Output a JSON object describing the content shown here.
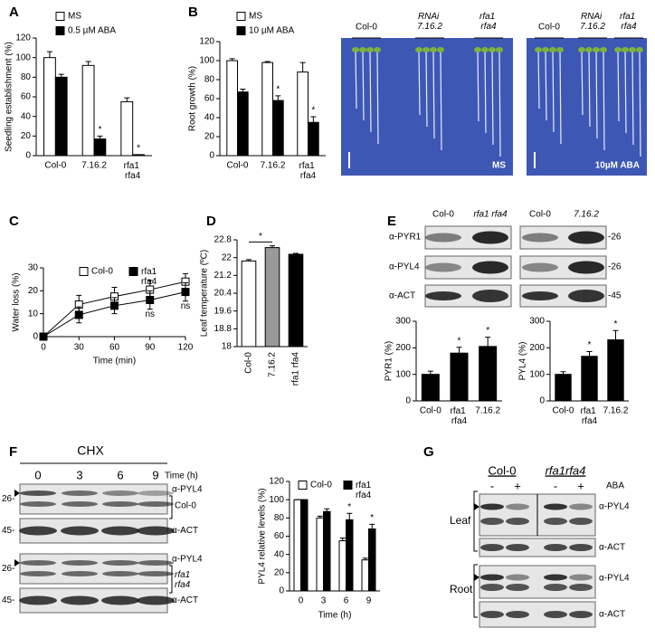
{
  "panel_labels": [
    "A",
    "B",
    "C",
    "D",
    "E",
    "F",
    "G"
  ],
  "chart_data": [
    {
      "type": "bar",
      "y_label": "Seedling establishment (%)",
      "categories": [
        "Col-0",
        "7.16.2",
        "rfa1 rfa4"
      ],
      "series": [
        {
          "name": "MS",
          "color": "#ffffff",
          "values": [
            100,
            92,
            55
          ],
          "errors": [
            6,
            4,
            4
          ]
        },
        {
          "name": "0.5 µM ABA",
          "color": "#000000",
          "values": [
            80,
            17,
            1
          ],
          "errors": [
            3,
            3,
            0
          ],
          "marks": [
            null,
            "*",
            "*"
          ]
        }
      ],
      "ylim": [
        0,
        120
      ],
      "yticks": [
        0,
        20,
        40,
        60,
        80,
        100,
        120
      ]
    },
    {
      "type": "bar",
      "y_label": "Root growth (%)",
      "categories": [
        "Col-0",
        "7.16.2",
        "rfa1 rfa4"
      ],
      "series": [
        {
          "name": "MS",
          "color": "#ffffff",
          "values": [
            100,
            98,
            88
          ],
          "errors": [
            2,
            1,
            10
          ]
        },
        {
          "name": "10 µM ABA",
          "color": "#000000",
          "values": [
            67,
            58,
            35
          ],
          "errors": [
            3,
            5,
            6
          ],
          "marks": [
            null,
            "*",
            "*"
          ]
        }
      ],
      "ylim": [
        0,
        120
      ],
      "yticks": [
        0,
        20,
        40,
        60,
        80,
        100,
        120
      ]
    },
    {
      "type": "line",
      "y_label": "Water loss (%)",
      "x_label": "Time (min)",
      "x": [
        0,
        30,
        60,
        90,
        120
      ],
      "xlim": [
        0,
        120
      ],
      "xticks": [
        0,
        30,
        60,
        90,
        120
      ],
      "series": [
        {
          "name": "Col-0",
          "color": "#ffffff",
          "values": [
            0,
            14,
            17.5,
            20.5,
            24
          ],
          "errors": [
            0,
            4,
            4,
            4,
            3.5
          ]
        },
        {
          "name": "rfa1 rfa4",
          "color": "#000000",
          "values": [
            0,
            9.5,
            13.5,
            16,
            19.5
          ],
          "errors": [
            0,
            3.5,
            3.5,
            4,
            4
          ],
          "marks": [
            null,
            null,
            null,
            "ns",
            "ns"
          ]
        }
      ],
      "ylim": [
        0,
        30
      ],
      "yticks": [
        0,
        10,
        20,
        30
      ]
    },
    {
      "type": "bar",
      "y_label": "Leaf temperature (ºC)",
      "categories": [
        "Col-0",
        "7.16.2",
        "rfa1 rfa4"
      ],
      "series": [
        {
          "colors": [
            "#ffffff",
            "#999999",
            "#000000"
          ],
          "values": [
            21.85,
            22.45,
            22.15
          ],
          "errors": [
            0.06,
            0.08,
            0.04
          ]
        }
      ],
      "annotation": "*",
      "ylim": [
        18,
        22.8
      ],
      "yticks": [
        18,
        18.8,
        19.6,
        20.4,
        21.2,
        22,
        22.8
      ]
    },
    {
      "type": "bar",
      "y_label": "PYR1 (%)",
      "categories": [
        "Col-0",
        "rfa1 rfa4",
        "7.16.2"
      ],
      "series": [
        {
          "color": "#000000",
          "values": [
            100,
            180,
            205
          ],
          "errors": [
            12,
            22,
            35
          ],
          "marks": [
            null,
            "*",
            "*"
          ]
        }
      ],
      "ylim": [
        0,
        300
      ],
      "yticks": [
        0,
        100,
        200,
        300
      ]
    },
    {
      "type": "bar",
      "y_label": "PYL4 (%)",
      "categories": [
        "Col-0",
        "rfa1 rfa4",
        "7.16.2"
      ],
      "series": [
        {
          "color": "#000000",
          "values": [
            100,
            168,
            230
          ],
          "errors": [
            10,
            18,
            35
          ],
          "marks": [
            null,
            "*",
            "*"
          ]
        }
      ],
      "ylim": [
        0,
        300
      ],
      "yticks": [
        0,
        100,
        200,
        300
      ]
    },
    {
      "type": "bar",
      "y_label": "PYL4 relative levels (%)",
      "x_label": "Time (h)",
      "categories": [
        "0",
        "3",
        "6",
        "9"
      ],
      "series": [
        {
          "name": "Col-0",
          "color": "#ffffff",
          "values": [
            100,
            80,
            55,
            34
          ],
          "errors": [
            0,
            2,
            3,
            2
          ]
        },
        {
          "name": "rfa1 rfa4",
          "color": "#000000",
          "values": [
            100,
            87,
            78,
            68
          ],
          "errors": [
            0,
            3,
            7,
            5
          ],
          "marks": [
            null,
            null,
            "*",
            "*"
          ]
        }
      ],
      "ylim": [
        0,
        120
      ],
      "yticks": [
        0,
        20,
        40,
        60,
        80,
        100,
        120
      ]
    }
  ],
  "plates": {
    "lanes": [
      "Col-0",
      "RNAi 7.16.2",
      "rfa1 rfa4"
    ],
    "conditions": [
      "MS",
      "10µM ABA"
    ]
  },
  "blots_e": {
    "groups": [
      [
        "Col-0",
        "rfa1 rfa4"
      ],
      [
        "Col-0",
        "7.16.2"
      ]
    ],
    "rows": [
      "α-PYR1",
      "α-PYL4",
      "α-ACT"
    ],
    "sizes": [
      "-26",
      "-26",
      "-45"
    ]
  },
  "blots_f": {
    "treatment": "CHX",
    "times": [
      "0",
      "3",
      "6",
      "9"
    ],
    "time_label": "Time (h)",
    "rows": [
      "α-PYL4",
      "α-ACT",
      "α-PYL4",
      "α-ACT"
    ],
    "sizes": [
      "26-",
      "45-",
      "26-",
      "45-"
    ],
    "genotypes": [
      "Col-0",
      "rfa1 rfa4"
    ]
  },
  "blots_g": {
    "genotypes": [
      "Col-0",
      "rfa1rfa4"
    ],
    "treatment": "ABA",
    "lanes": [
      "-",
      "+",
      "-",
      "+"
    ],
    "tissues": [
      "Leaf",
      "Root"
    ],
    "rows": [
      "α-PYL4",
      "α-ACT",
      "α-PYL4",
      "α-ACT"
    ]
  }
}
